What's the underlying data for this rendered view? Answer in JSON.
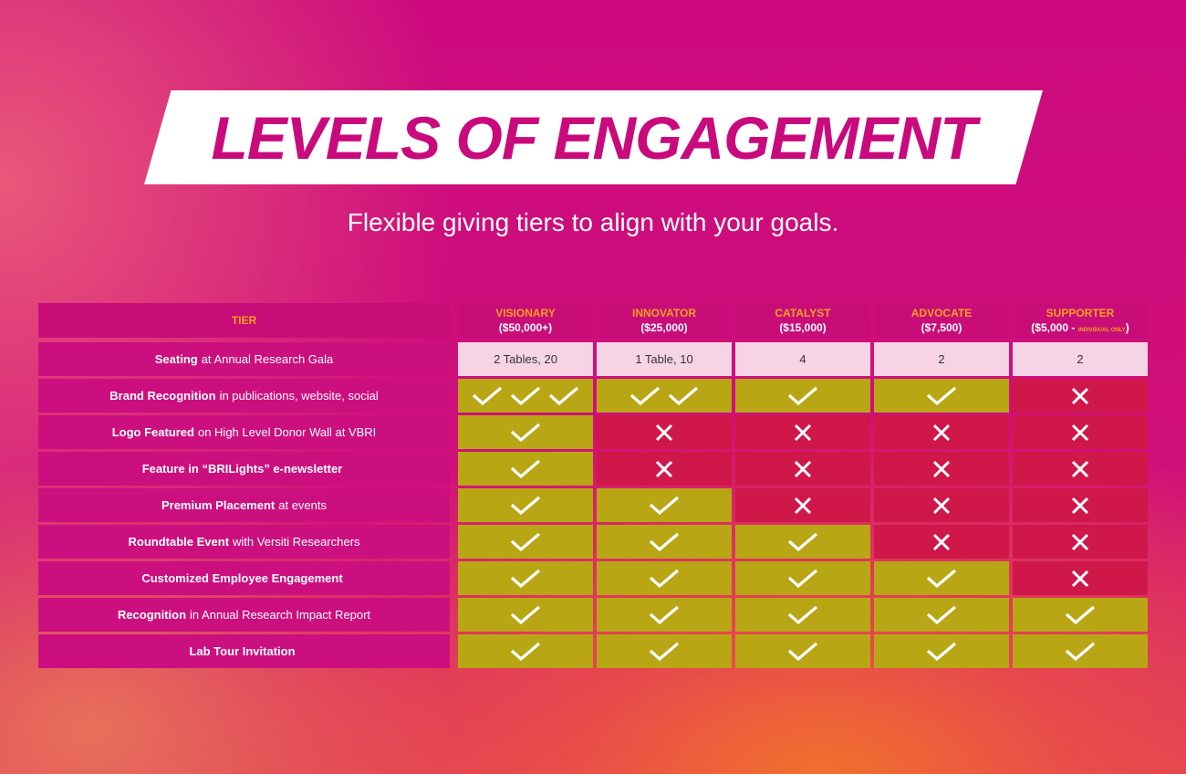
{
  "title": "LEVELS OF ENGAGEMENT",
  "subtitle": "Flexible giving tiers to align with your goals.",
  "colors": {
    "check": "#b8a615",
    "x": "#d0174a",
    "header": "#f7a11b",
    "seat": "#f6d4e6",
    "magenta": "#cc0f7e"
  },
  "header": {
    "label": "TIER",
    "tiers": [
      {
        "name": "VISIONARY",
        "price": "($50,000+)"
      },
      {
        "name": "INNOVATOR",
        "price": "($25,000)"
      },
      {
        "name": "CATALYST",
        "price": "($15,000)"
      },
      {
        "name": "ADVOCATE",
        "price": "($7,500)"
      },
      {
        "name": "SUPPORTER",
        "price": "($5,000 - ",
        "note": "INDIVIDUAL ONLY",
        "price_end": ")"
      }
    ]
  },
  "rows": [
    {
      "bold": "Seating",
      "rest": "at Annual Research Gala",
      "cells": [
        "2 Tables, 20",
        "1 Table, 10",
        "4",
        "2",
        "2"
      ]
    },
    {
      "bold": "Brand Recognition",
      "rest": "in publications, website, social",
      "cells": [
        3,
        2,
        1,
        1,
        0
      ]
    },
    {
      "bold": "Logo Featured",
      "rest": "on High Level Donor Wall at VBRI",
      "cells": [
        1,
        0,
        0,
        0,
        0
      ]
    },
    {
      "bold": "Feature in “BRILights” e-newsletter",
      "rest": "",
      "cells": [
        1,
        0,
        0,
        0,
        0
      ]
    },
    {
      "bold": "Premium Placement",
      "rest": "at events",
      "cells": [
        1,
        1,
        0,
        0,
        0
      ]
    },
    {
      "bold": "Roundtable Event",
      "rest": "with Versiti Researchers",
      "cells": [
        1,
        1,
        1,
        0,
        0
      ]
    },
    {
      "bold": "Customized Employee Engagement",
      "rest": "",
      "cells": [
        1,
        1,
        1,
        1,
        0
      ]
    },
    {
      "bold": "Recognition",
      "rest": "in Annual Research Impact Report",
      "cells": [
        1,
        1,
        1,
        1,
        1
      ]
    },
    {
      "bold": "Lab Tour Invitation",
      "rest": "",
      "cells": [
        1,
        1,
        1,
        1,
        1
      ]
    }
  ]
}
